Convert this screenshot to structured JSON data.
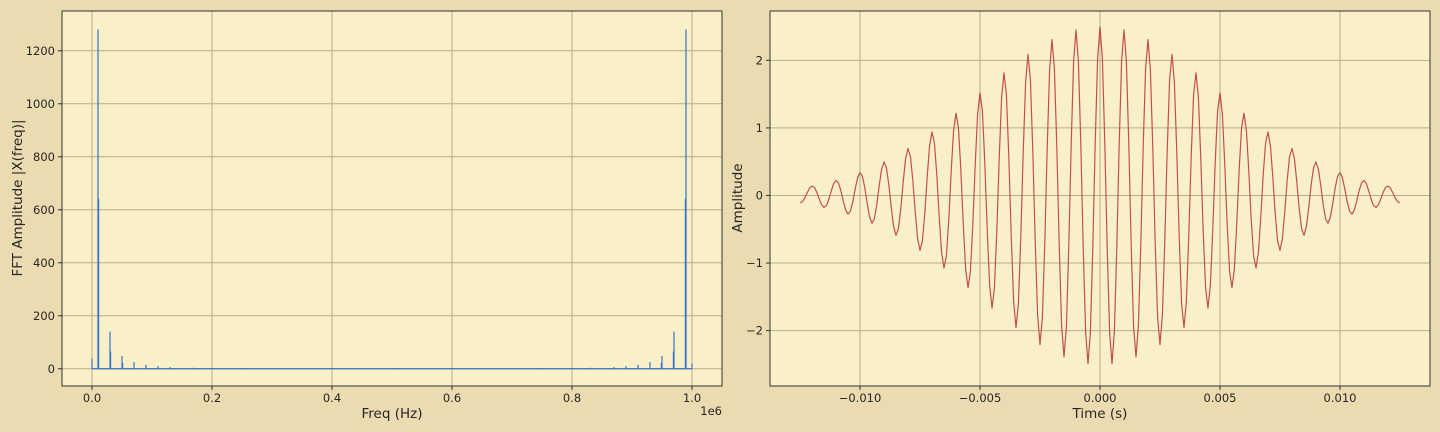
{
  "figure": {
    "background": "#eadbb0"
  },
  "chart_data": [
    {
      "type": "line",
      "name": "fft",
      "xlabel": "Freq (Hz)",
      "ylabel": "FFT Amplitude |X(freq)|",
      "x_offset_label": "1e6",
      "xlim": [
        -0.05,
        1.05
      ],
      "ylim": [
        -65,
        1350
      ],
      "xticks": [
        0.0,
        0.2,
        0.4,
        0.6,
        0.8,
        1.0
      ],
      "xtick_labels": [
        "0.0",
        "0.2",
        "0.4",
        "0.6",
        "0.8",
        "1.0"
      ],
      "yticks": [
        0,
        200,
        400,
        600,
        800,
        1000,
        1200
      ],
      "ytick_labels": [
        "0",
        "200",
        "400",
        "600",
        "800",
        "1000",
        "1200"
      ],
      "grid": true,
      "plot_background": "#f9f0c8",
      "grid_color": "#b5ae8c",
      "line_color": "#3571c8",
      "series": [
        {
          "peaks": [
            [
              0.0,
              38
            ],
            [
              0.01,
              1280
            ],
            [
              0.011,
              640
            ],
            [
              0.03,
              140
            ],
            [
              0.031,
              65
            ],
            [
              0.05,
              48
            ],
            [
              0.051,
              22
            ],
            [
              0.07,
              25
            ],
            [
              0.09,
              15
            ],
            [
              0.11,
              10
            ],
            [
              0.13,
              6
            ],
            [
              0.17,
              4
            ],
            [
              0.25,
              3
            ],
            [
              0.26,
              3
            ],
            [
              0.5,
              3
            ],
            [
              0.51,
              3
            ],
            [
              0.74,
              3
            ],
            [
              0.75,
              3
            ],
            [
              0.83,
              4
            ],
            [
              0.87,
              6
            ],
            [
              0.89,
              10
            ],
            [
              0.91,
              15
            ],
            [
              0.93,
              25
            ],
            [
              0.95,
              48
            ],
            [
              0.949,
              22
            ],
            [
              0.97,
              140
            ],
            [
              0.969,
              65
            ],
            [
              0.989,
              640
            ],
            [
              0.99,
              1280
            ],
            [
              1.0,
              20
            ]
          ]
        }
      ]
    },
    {
      "type": "line",
      "name": "time",
      "xlabel": "Time (s)",
      "ylabel": "Amplitude",
      "xlim": [
        -0.01375,
        0.01375
      ],
      "ylim": [
        -2.82,
        2.73
      ],
      "xticks": [
        -0.01,
        -0.005,
        0.0,
        0.005,
        0.01
      ],
      "xtick_labels": [
        "−0.010",
        "−0.005",
        "0.000",
        "0.005",
        "0.010"
      ],
      "yticks": [
        -2,
        -1,
        0,
        1,
        2
      ],
      "ytick_labels": [
        "−2",
        "−1",
        "0",
        "1",
        "2"
      ],
      "grid": true,
      "plot_background": "#f9f0c8",
      "grid_color": "#b5ae8c",
      "line_color": "#c44e52",
      "series": [
        {
          "signal": {
            "t_start": -0.0125,
            "t_end": 0.0125,
            "samples": 251,
            "carrier_hz": 1000,
            "envelope_peak": 2.5,
            "envelope_sigma": 0.005
          }
        }
      ]
    }
  ]
}
